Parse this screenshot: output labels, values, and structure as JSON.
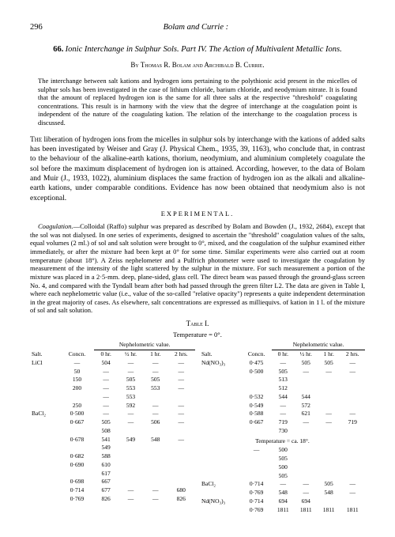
{
  "page": {
    "number": "296",
    "header_authors": "Bolam and Currie :"
  },
  "title": {
    "number": "66.",
    "main": "Ionic Interchange in Sulphur Sols.  Part IV.  The Action of Multivalent Metallic Ions."
  },
  "byline": "By Thomas R. Bolam and Archibald B. Currie.",
  "abstract": "The interchange between salt kations and hydrogen ions pertaining to the polythionic acid present in the micelles of sulphur sols has been investigated in the case of lithium chloride, barium chloride, and neodymium nitrate. It is found that the amount of replaced hydrogen ion is the same for all three salts at the respective \"threshold\" coagulating concentrations. This result is in harmony with the view that the degree of interchange at the coagulation point is independent of the nature of the coagulating kation. The relation of the interchange to the coagulation process is discussed.",
  "body_para1": "The liberation of hydrogen ions from the micelles in sulphur sols by interchange with the kations of added salts has been investigated by Weiser and Gray (J. Physical Chem., 1935, 39, 1163), who conclude that, in contrast to the behaviour of the alkaline-earth kations, thorium, neodymium, and aluminium completely coagulate the sol before the maximum displacement of hydrogen ion is attained. According, however, to the data of Bolam and Muir (J., 1933, 1022), aluminium displaces the same fraction of hydrogen ion as the alkali and alkaline-earth kations, under comparable conditions. Evidence has now been obtained that neodymium also is not exceptional.",
  "exp_header": "EXPERIMENTAL.",
  "exp_text": "Coagulation.—Colloidal (Raffo) sulphur was prepared as described by Bolam and Bowden (J., 1932, 2684), except that the sol was not dialysed. In one series of experiments, designed to ascertain the \"threshold\" coagulation values of the salts, equal volumes (2 ml.) of sol and salt solution were brought to 0°, mixed, and the coagulation of the sulphur examined either immediately, or after the mixture had been kept at 0° for some time. Similar experiments were also carried out at room temperature (about 18°). A Zeiss nephelometer and a Pulfrich photometer were used to investigate the coagulation by measurement of the intensity of the light scattered by the sulphur in the mixture. For such measurement a portion of the mixture was placed in a 2·5-mm. deep, plane-sided, glass cell. The direct beam was passed through the ground-glass screen No. 4, and compared with the Tyndall beam after both had passed through the green filter L2. The data are given in Table I, where each nephelometric value (i.e., value of the so-called \"relative opacity\") represents a quite independent determination in the great majority of cases. As elsewhere, salt concentrations are expressed as milliequivs. of kation in 1 l. of the mixture of sol and salt solution.",
  "table": {
    "caption": "Table I.",
    "temp1": "Temperature = 0°.",
    "temp2": "Temperature = ca. 18°.",
    "group_label": "Nephelometric value.",
    "cols": [
      "Salt.",
      "Concn.",
      "0 hr.",
      "½ hr.",
      "1 hr.",
      "2 hrs."
    ],
    "left_rows": [
      [
        "LiCl",
        "—",
        "504",
        "—",
        "—",
        "—"
      ],
      [
        "",
        "50",
        "—",
        "—",
        "—",
        "—"
      ],
      [
        "",
        "150",
        "—",
        "505",
        "505",
        "—"
      ],
      [
        "",
        "200",
        "—",
        "553",
        "553",
        "—"
      ],
      [
        "",
        "",
        "—",
        "553",
        "",
        ""
      ],
      [
        "",
        "250",
        "—",
        "592",
        "—",
        "—"
      ],
      [
        "BaCl₂",
        "0·500",
        "—",
        "—",
        "—",
        "—"
      ],
      [
        "",
        "0·667",
        "505",
        "—",
        "506",
        "—"
      ],
      [
        "",
        "",
        "508",
        "",
        "",
        ""
      ],
      [
        "",
        "0·678",
        "541",
        "549",
        "548",
        "—"
      ],
      [
        "",
        "",
        "549",
        "",
        "",
        ""
      ],
      [
        "",
        "0·682",
        "588",
        "",
        "",
        ""
      ],
      [
        "",
        "0·690",
        "610",
        "",
        "",
        ""
      ],
      [
        "",
        "",
        "617",
        "",
        "",
        ""
      ],
      [
        "",
        "0·698",
        "667",
        "",
        "",
        ""
      ],
      [
        "",
        "0·714",
        "677",
        "—",
        "—",
        "680"
      ],
      [
        "",
        "0·769",
        "826",
        "—",
        "—",
        "826"
      ]
    ],
    "right_rows": [
      [
        "Nd(NO₃)₃",
        "0·475",
        "—",
        "505",
        "505",
        "—"
      ],
      [
        "",
        "0·500",
        "505",
        "—",
        "—",
        "—"
      ],
      [
        "",
        "",
        "513",
        "",
        "",
        ""
      ],
      [
        "",
        "",
        "512",
        "",
        "",
        ""
      ],
      [
        "",
        "0·532",
        "544",
        "544",
        "",
        ""
      ],
      [
        "",
        "0·549",
        "—",
        "572",
        "",
        ""
      ],
      [
        "",
        "0·588",
        "—",
        "621",
        "—",
        "—"
      ],
      [
        "",
        "0·667",
        "719",
        "—",
        "—",
        "719"
      ],
      [
        "",
        "",
        "730",
        "",
        "",
        ""
      ]
    ],
    "right_rows_18": [
      [
        "",
        "—",
        "500",
        "",
        "",
        ""
      ],
      [
        "",
        "",
        "505",
        "",
        "",
        ""
      ],
      [
        "",
        "",
        "500",
        "",
        "",
        ""
      ],
      [
        "",
        "",
        "505",
        "",
        "",
        ""
      ],
      [
        "BaCl₂",
        "0·714",
        "—",
        "—",
        "505",
        "—"
      ],
      [
        "",
        "0·769",
        "548",
        "—",
        "548",
        "—"
      ],
      [
        "Nd(NO₃)₃",
        "0·714",
        "694",
        "694",
        "",
        ""
      ],
      [
        "",
        "0·769",
        "1811",
        "1811",
        "1811",
        "1811"
      ]
    ]
  }
}
